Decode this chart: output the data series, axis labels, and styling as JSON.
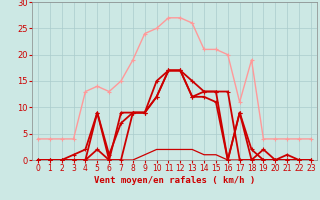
{
  "title": "",
  "xlabel": "Vent moyen/en rafales ( km/h )",
  "ylabel": "",
  "bg_color": "#cce8e4",
  "grid_color": "#aacccc",
  "xlim": [
    -0.5,
    23.5
  ],
  "ylim": [
    0,
    30
  ],
  "yticks": [
    0,
    5,
    10,
    15,
    20,
    25,
    30
  ],
  "xticks": [
    0,
    1,
    2,
    3,
    4,
    5,
    6,
    7,
    8,
    9,
    10,
    11,
    12,
    13,
    14,
    15,
    16,
    17,
    18,
    19,
    20,
    21,
    22,
    23
  ],
  "series": [
    {
      "x": [
        0,
        1,
        2,
        3,
        4,
        5,
        6,
        7,
        8,
        9,
        10,
        11,
        12,
        13,
        14,
        15,
        16,
        17,
        18,
        19,
        20,
        21,
        22,
        23
      ],
      "y": [
        0,
        0,
        0,
        0,
        0,
        2,
        0,
        0,
        9,
        9,
        15,
        17,
        17,
        15,
        13,
        13,
        13,
        0,
        0,
        2,
        0,
        0,
        0,
        0
      ],
      "color": "#cc0000",
      "lw": 1.3,
      "marker": "+",
      "ms": 3.5,
      "zorder": 5
    },
    {
      "x": [
        0,
        1,
        2,
        3,
        4,
        5,
        6,
        7,
        8,
        9,
        10,
        11,
        12,
        13,
        14,
        15,
        16,
        17,
        18,
        19,
        20,
        21,
        22,
        23
      ],
      "y": [
        0,
        0,
        0,
        0,
        0,
        9,
        0,
        9,
        9,
        9,
        12,
        17,
        17,
        12,
        13,
        13,
        0,
        9,
        0,
        0,
        0,
        0,
        0,
        0
      ],
      "color": "#cc0000",
      "lw": 1.3,
      "marker": "+",
      "ms": 3.5,
      "zorder": 4
    },
    {
      "x": [
        0,
        1,
        2,
        3,
        4,
        5,
        6,
        7,
        8,
        9,
        10,
        11,
        12,
        13,
        14,
        15,
        16,
        17,
        18,
        19,
        20,
        21,
        22,
        23
      ],
      "y": [
        0,
        0,
        0,
        1,
        2,
        9,
        1,
        7,
        9,
        9,
        12,
        17,
        17,
        12,
        12,
        11,
        0,
        9,
        2,
        0,
        0,
        1,
        0,
        0
      ],
      "color": "#cc0000",
      "lw": 1.3,
      "marker": "+",
      "ms": 3.5,
      "zorder": 4
    },
    {
      "x": [
        0,
        1,
        2,
        3,
        4,
        5,
        6,
        7,
        8,
        9,
        10,
        11,
        12,
        13,
        14,
        15,
        16,
        17,
        18,
        19,
        20,
        21,
        22,
        23
      ],
      "y": [
        4,
        4,
        4,
        4,
        13,
        14,
        13,
        15,
        19,
        24,
        25,
        27,
        27,
        26,
        21,
        21,
        20,
        11,
        19,
        4,
        4,
        4,
        4,
        4
      ],
      "color": "#ff9999",
      "lw": 1.0,
      "marker": "+",
      "ms": 3.5,
      "zorder": 3
    },
    {
      "x": [
        0,
        1,
        2,
        3,
        4,
        5,
        6,
        7,
        8,
        9,
        10,
        11,
        12,
        13,
        14,
        15,
        16,
        17,
        18,
        19,
        20,
        21,
        22,
        23
      ],
      "y": [
        0,
        0,
        0,
        0,
        0,
        0,
        0,
        0,
        0,
        1,
        2,
        2,
        2,
        2,
        1,
        1,
        0,
        0,
        0,
        0,
        0,
        0,
        0,
        0
      ],
      "color": "#cc0000",
      "lw": 0.9,
      "marker": null,
      "ms": 0,
      "zorder": 2
    }
  ]
}
